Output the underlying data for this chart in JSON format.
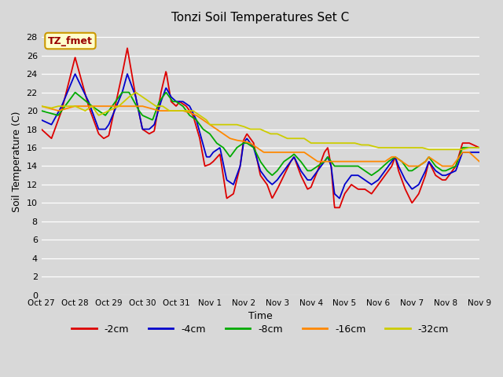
{
  "title": "Tonzi Soil Temperatures Set C",
  "xlabel": "Time",
  "ylabel": "Soil Temperature (C)",
  "ylim": [
    0,
    29
  ],
  "yticks": [
    0,
    2,
    4,
    6,
    8,
    10,
    12,
    14,
    16,
    18,
    20,
    22,
    24,
    26,
    28
  ],
  "bg_color": "#d8d8d8",
  "plot_bg_color": "#d8d8d8",
  "annotation_text": "TZ_fmet",
  "annotation_bg": "#ffffcc",
  "annotation_border": "#cc9900",
  "annotation_text_color": "#990000",
  "series_colors": {
    "-2cm": "#dd0000",
    "-4cm": "#0000cc",
    "-8cm": "#00aa00",
    "-16cm": "#ff8800",
    "-32cm": "#cccc00"
  },
  "legend_labels": [
    "-2cm",
    "-4cm",
    "-8cm",
    "-16cm",
    "-32cm"
  ],
  "x_tick_labels": [
    "Oct 27",
    "Oct 28",
    "Oct 29",
    "Oct 30",
    "Oct 31",
    "Nov 1",
    "Nov 2",
    "Nov 3",
    "Nov 4",
    "Nov 5",
    "Nov 6",
    "Nov 7",
    "Nov 8",
    "Nov 9"
  ],
  "date_range_days": 13
}
